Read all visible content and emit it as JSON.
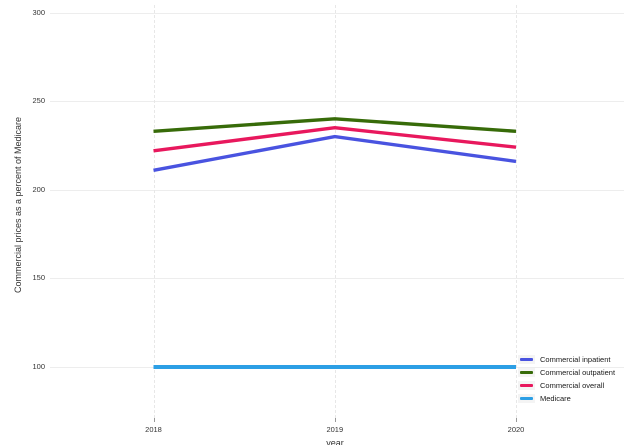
{
  "chart_data": {
    "type": "line",
    "title": "",
    "xlabel": "year",
    "ylabel": "Commercial prices as a percent of Medicare",
    "x": [
      2018,
      2019,
      2020
    ],
    "xtick_labels": [
      "2018",
      "2019",
      "2020"
    ],
    "ytick_values": [
      300,
      250,
      200,
      150,
      100
    ],
    "ytick_labels": [
      "300",
      "250",
      "200",
      "150",
      "100"
    ],
    "ylim": [
      100,
      300
    ],
    "grid": "horizontal solid light-gray at each ytick; vertical dashed light-gray at each year",
    "legend_position": "inside bottom-right",
    "series": [
      {
        "name": "Commercial inpatient",
        "color": "#4953e0",
        "values": [
          211,
          230,
          216
        ],
        "stroke_width": 3.4
      },
      {
        "name": "Commercial outpatient",
        "color": "#376b09",
        "values": [
          233,
          240,
          233
        ],
        "stroke_width": 3.4
      },
      {
        "name": "Commercial overall",
        "color": "#e8185d",
        "values": [
          222,
          235,
          224
        ],
        "stroke_width": 3.4
      },
      {
        "name": "Medicare",
        "color": "#2c9fe5",
        "values": [
          100,
          100,
          100
        ],
        "stroke_width": 4
      }
    ]
  }
}
